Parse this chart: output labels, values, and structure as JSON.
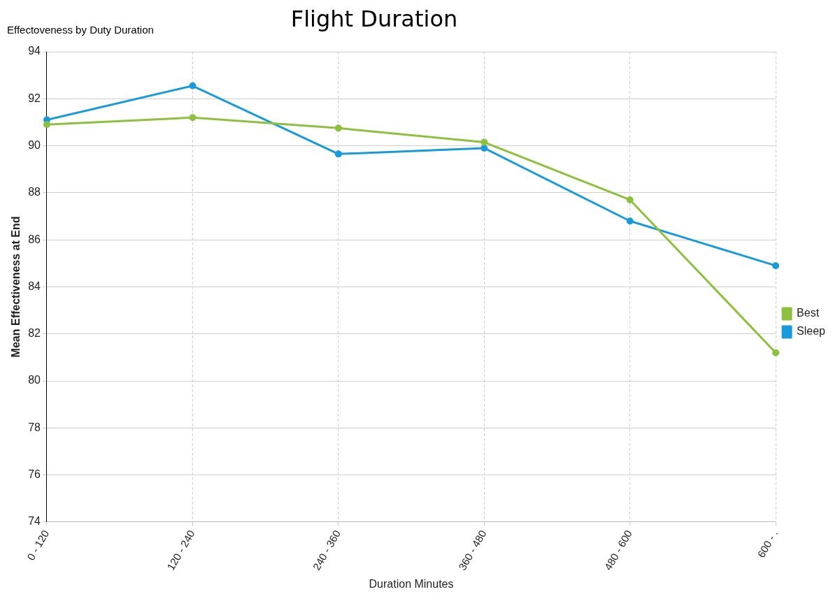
{
  "chart_data": {
    "type": "line",
    "title": "Flight Duration",
    "subtitle": "Effectoveness by Duty Duration",
    "xlabel": "Duration Minutes",
    "ylabel": "Mean Effectiveness at End",
    "categories": [
      "0 - 120",
      "120 - 240",
      "240 - 360",
      "360 - 480",
      "480 - 600",
      "600 - ."
    ],
    "series": [
      {
        "name": "Best",
        "color": "#8dc03f",
        "values": [
          90.9,
          91.2,
          90.75,
          90.15,
          87.7,
          81.2
        ]
      },
      {
        "name": "Sleep",
        "color": "#1b9ad9",
        "values": [
          91.1,
          92.55,
          89.65,
          89.9,
          86.8,
          84.9
        ]
      }
    ],
    "ylim": [
      74,
      94
    ],
    "yticks": [
      74,
      76,
      78,
      80,
      82,
      84,
      86,
      88,
      90,
      92,
      94
    ],
    "grid": true,
    "legend": "right",
    "marker": "circle",
    "line_style": "solid"
  }
}
